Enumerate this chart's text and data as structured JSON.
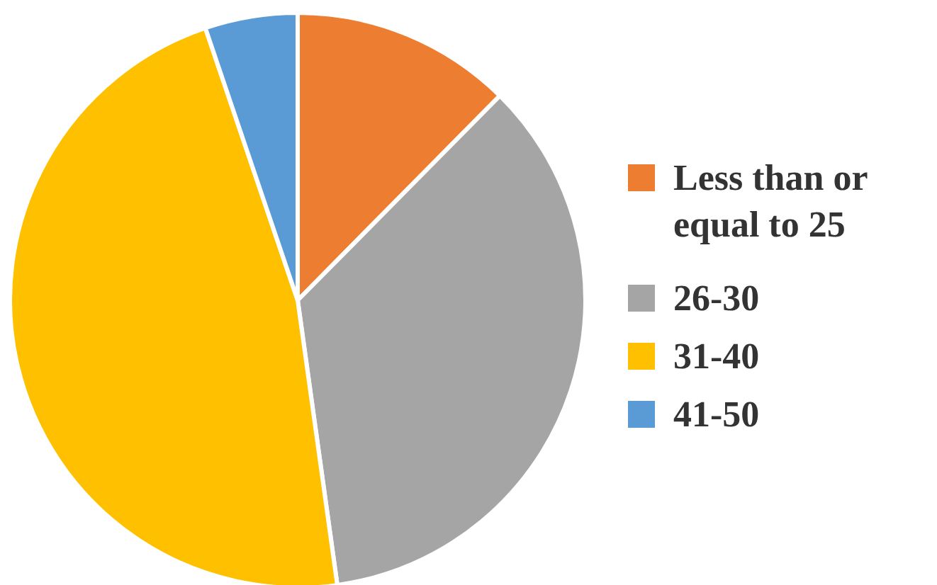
{
  "chart_data": {
    "type": "pie",
    "categories": [
      "Less than or equal to 25",
      "26-30",
      "31-40",
      "41-50"
    ],
    "values": [
      12.4,
      35.4,
      47.0,
      5.2
    ],
    "colors": [
      "#ed7d31",
      "#a5a5a5",
      "#ffc000",
      "#5b9bd5"
    ],
    "legend": "right"
  }
}
